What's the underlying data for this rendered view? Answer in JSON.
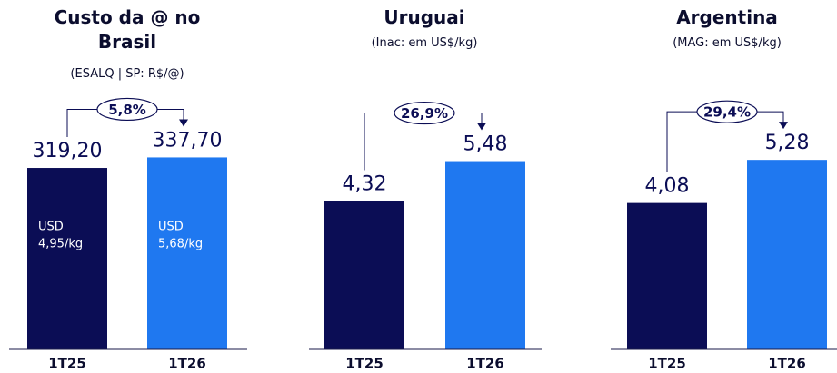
{
  "chart_data": [
    {
      "type": "bar",
      "title": "Custo da @ no Brasil",
      "subtitle": "(ESALQ | SP: R$/@)",
      "categories": [
        "1T25",
        "1T26"
      ],
      "values": [
        319.2,
        337.7
      ],
      "value_labels": [
        "319,20",
        "337,70"
      ],
      "inner_labels": [
        [
          "USD",
          "4,95/kg"
        ],
        [
          "USD",
          "5,68/kg"
        ]
      ],
      "colors": [
        "#0b0d55",
        "#1f78f0"
      ],
      "annotation": "5,8%",
      "ylim": [
        0,
        423
      ]
    },
    {
      "type": "bar",
      "title": "Uruguai",
      "subtitle": "(Inac: em US$/kg)",
      "categories": [
        "1T25",
        "1T26"
      ],
      "values": [
        4.32,
        5.48
      ],
      "value_labels": [
        "4,32",
        "5,48"
      ],
      "colors": [
        "#0b0d55",
        "#1f78f0"
      ],
      "annotation": "26,9%",
      "ylim": [
        0,
        7
      ]
    },
    {
      "type": "bar",
      "title": "Argentina",
      "subtitle": "(MAG: em US$/kg)",
      "categories": [
        "1T25",
        "1T26"
      ],
      "values": [
        4.08,
        5.28
      ],
      "value_labels": [
        "4,08",
        "5,28"
      ],
      "colors": [
        "#0b0d55",
        "#1f78f0"
      ],
      "annotation": "29,4%",
      "ylim": [
        0,
        6.7
      ]
    }
  ]
}
